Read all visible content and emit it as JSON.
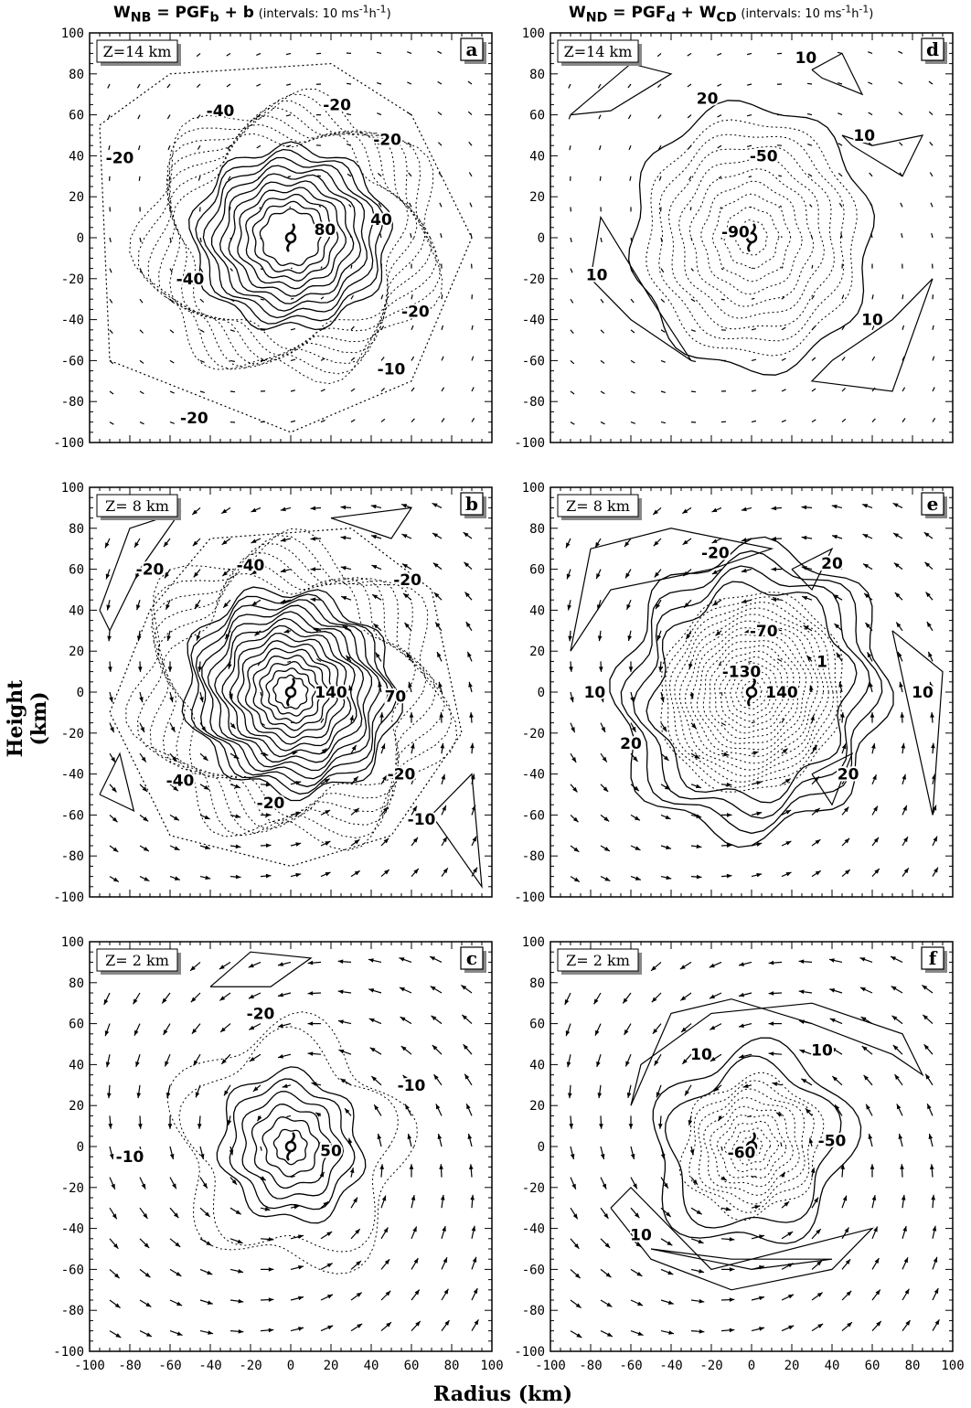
{
  "headers": {
    "left": {
      "w": "W",
      "w_sub": "NB",
      "eq": " = PGF",
      "eq_sub": "b",
      "tail": " + b",
      "note": "(intervals: 10 ms",
      "note_sup1": "-1",
      "note_mid": "h",
      "note_sup2": "-1",
      "note_end": ")"
    },
    "right": {
      "w": "W",
      "w_sub": "ND",
      "eq": " = PGF",
      "eq_sub": "d",
      "tail": " + W",
      "tail_sub": "CD",
      "note": "(intervals: 10 ms",
      "note_sup1": "-1",
      "note_mid": "h",
      "note_sup2": "-1",
      "note_end": ")"
    }
  },
  "ylabel": "Height (km)",
  "xlabel": "Radius (km)",
  "axis": {
    "ticks": [
      -100,
      -80,
      -60,
      -40,
      -20,
      0,
      20,
      40,
      60,
      80,
      100
    ],
    "tick_labels": [
      "-100",
      "-80",
      "-60",
      "-40",
      "-20",
      "0",
      "20",
      "40",
      "60",
      "80",
      "100"
    ]
  },
  "panels": [
    {
      "letter": "a",
      "level": "Z=14 km",
      "col": 0,
      "row": 0,
      "solid": {
        "n": 10,
        "r0": 14,
        "dr": 3.6,
        "amp": 0.06,
        "k": 9
      },
      "dotted": {
        "n": 7,
        "r0": 52,
        "dr": 3.0,
        "amp": 0.1,
        "k": 7
      },
      "outer_dotted": [
        [
          -95,
          55,
          -60,
          80,
          20,
          85,
          60,
          60,
          90,
          0,
          60,
          -70,
          0,
          -95,
          -90,
          -60,
          -95,
          55
        ]
      ],
      "extra_solid": [],
      "labels": [
        [
          "80",
          17,
          4
        ],
        [
          "40",
          45,
          9
        ],
        [
          "-40",
          -35,
          62
        ],
        [
          "-20",
          23,
          65
        ],
        [
          "-20",
          48,
          48
        ],
        [
          "-20",
          -85,
          39
        ],
        [
          "-40",
          -50,
          -20
        ],
        [
          "-20",
          62,
          -36
        ],
        [
          "-10",
          50,
          -64
        ],
        [
          "-20",
          -48,
          -88
        ]
      ],
      "vec_scale": 0.35,
      "show_x_ticklabels": false
    },
    {
      "letter": "b",
      "level": "Z= 8 km",
      "col": 0,
      "row": 1,
      "solid": {
        "n": 14,
        "r0": 8,
        "dr": 3.3,
        "amp": 0.07,
        "k": 9
      },
      "dotted": {
        "n": 6,
        "r0": 56,
        "dr": 3.5,
        "amp": 0.12,
        "k": 7
      },
      "outer_dotted": [
        [
          -70,
          40,
          -40,
          75,
          30,
          80,
          70,
          50,
          85,
          -20,
          50,
          -70,
          0,
          -85,
          -60,
          -70,
          -90,
          -10,
          -70,
          40
        ]
      ],
      "extra_solid": [
        [
          -95,
          40,
          -80,
          80,
          -55,
          88,
          -75,
          60,
          -90,
          30,
          -95,
          40
        ],
        [
          -95,
          -50,
          -78,
          -58,
          -85,
          -30,
          -95,
          -50
        ],
        [
          20,
          85,
          60,
          90,
          50,
          75,
          20,
          85
        ],
        [
          70,
          -60,
          90,
          -40,
          95,
          -95,
          70,
          -60
        ]
      ],
      "labels": [
        [
          "140",
          20,
          0
        ],
        [
          "70",
          52,
          -2
        ],
        [
          "-20",
          -70,
          60
        ],
        [
          "-40",
          -20,
          62
        ],
        [
          "-20",
          58,
          55
        ],
        [
          "-40",
          -55,
          -43
        ],
        [
          "-20",
          -10,
          -54
        ],
        [
          "-20",
          55,
          -40
        ],
        [
          "-10",
          65,
          -62
        ]
      ],
      "vec_scale": 0.8,
      "show_x_ticklabels": false
    },
    {
      "letter": "c",
      "level": "Z= 2 km",
      "col": 0,
      "row": 2,
      "solid": {
        "n": 6,
        "r0": 8,
        "dr": 5.5,
        "amp": 0.08,
        "k": 7
      },
      "dotted": {
        "n": 2,
        "r0": 50,
        "dr": 7,
        "amp": 0.15,
        "k": 5
      },
      "outer_dotted": [],
      "extra_solid": [
        [
          -40,
          78,
          -20,
          95,
          10,
          92,
          -10,
          78,
          -40,
          78
        ]
      ],
      "labels": [
        [
          "50",
          20,
          -2
        ],
        [
          "-20",
          -15,
          65
        ],
        [
          "-10",
          60,
          30
        ],
        [
          "-10",
          -80,
          -5
        ]
      ],
      "vec_scale": 1.0,
      "show_x_ticklabels": true
    },
    {
      "letter": "d",
      "level": "Z=14 km",
      "col": 1,
      "row": 0,
      "solid": {
        "n": 1,
        "r0": 62,
        "dr": 0,
        "amp": 0.05,
        "k": 8
      },
      "dotted": {
        "n": 9,
        "r0": 8,
        "dr": 5.8,
        "amp": 0.04,
        "k": 8
      },
      "outer_dotted": [],
      "extra_solid": [
        [
          -90,
          60,
          -60,
          85,
          -40,
          80,
          -70,
          62,
          -90,
          60
        ],
        [
          30,
          82,
          45,
          90,
          55,
          70,
          35,
          78,
          30,
          82
        ],
        [
          45,
          50,
          60,
          45,
          85,
          50,
          75,
          30,
          50,
          45,
          45,
          50
        ],
        [
          -80,
          -20,
          -60,
          -40,
          -30,
          -60,
          -50,
          -30,
          -75,
          10,
          -80,
          -20
        ],
        [
          40,
          -60,
          70,
          -40,
          90,
          -20,
          70,
          -75,
          30,
          -70,
          40,
          -60
        ]
      ],
      "labels": [
        [
          "20",
          -22,
          68
        ],
        [
          "10",
          27,
          88
        ],
        [
          "10",
          56,
          50
        ],
        [
          "-50",
          6,
          40
        ],
        [
          "-90",
          -8,
          3
        ],
        [
          "10",
          -77,
          -18
        ],
        [
          "10",
          60,
          -40
        ]
      ],
      "vec_scale": 0.35,
      "show_x_ticklabels": false
    },
    {
      "letter": "e",
      "level": "Z= 8 km",
      "col": 1,
      "row": 1,
      "solid": {
        "n": 4,
        "r0": 50,
        "dr": 6,
        "amp": 0.08,
        "k": 8
      },
      "dotted": {
        "n": 16,
        "r0": 5,
        "dr": 2.8,
        "amp": 0.03,
        "k": 8
      },
      "outer_dotted": [],
      "extra_solid": [
        [
          -90,
          20,
          -80,
          70,
          -40,
          80,
          10,
          70,
          -20,
          60,
          -70,
          50,
          -90,
          20
        ],
        [
          20,
          60,
          40,
          70,
          30,
          50,
          20,
          60
        ],
        [
          70,
          30,
          95,
          10,
          90,
          -60,
          70,
          30
        ],
        [
          30,
          -40,
          50,
          -30,
          40,
          -55,
          30,
          -40
        ]
      ],
      "labels": [
        [
          "-20",
          -18,
          68
        ],
        [
          "20",
          40,
          63
        ],
        [
          "-70",
          6,
          30
        ],
        [
          "-130",
          -5,
          10
        ],
        [
          "1",
          35,
          15
        ],
        [
          "140",
          15,
          0
        ],
        [
          "10",
          -78,
          0
        ],
        [
          "10",
          85,
          0
        ],
        [
          "20",
          -60,
          -25
        ],
        [
          "20",
          48,
          -40
        ]
      ],
      "vec_scale": 0.8,
      "show_x_ticklabels": false
    },
    {
      "letter": "f",
      "level": "Z= 2 km",
      "col": 1,
      "row": 2,
      "solid": {
        "n": 2,
        "r0": 40,
        "dr": 8,
        "amp": 0.12,
        "k": 5
      },
      "dotted": {
        "n": 9,
        "r0": 5,
        "dr": 3.6,
        "amp": 0.08,
        "k": 6
      },
      "outer_dotted": [],
      "extra_solid": [
        [
          -60,
          20,
          -40,
          65,
          -10,
          72,
          30,
          60,
          70,
          45,
          85,
          35,
          75,
          55,
          30,
          70,
          -20,
          65,
          -55,
          40,
          -60,
          20
        ],
        [
          -70,
          -30,
          -50,
          -55,
          -10,
          -70,
          40,
          -60,
          60,
          -40,
          40,
          -45,
          -20,
          -60,
          -60,
          -20,
          -70,
          -30
        ],
        [
          -50,
          -50,
          0,
          -60,
          40,
          -55,
          -10,
          -55,
          -50,
          -50
        ]
      ],
      "labels": [
        [
          "10",
          -25,
          45
        ],
        [
          "10",
          35,
          47
        ],
        [
          "-50",
          40,
          3
        ],
        [
          "-60",
          -5,
          -3
        ],
        [
          "10",
          -55,
          -43
        ]
      ],
      "vec_scale": 1.0,
      "show_x_ticklabels": true
    }
  ]
}
